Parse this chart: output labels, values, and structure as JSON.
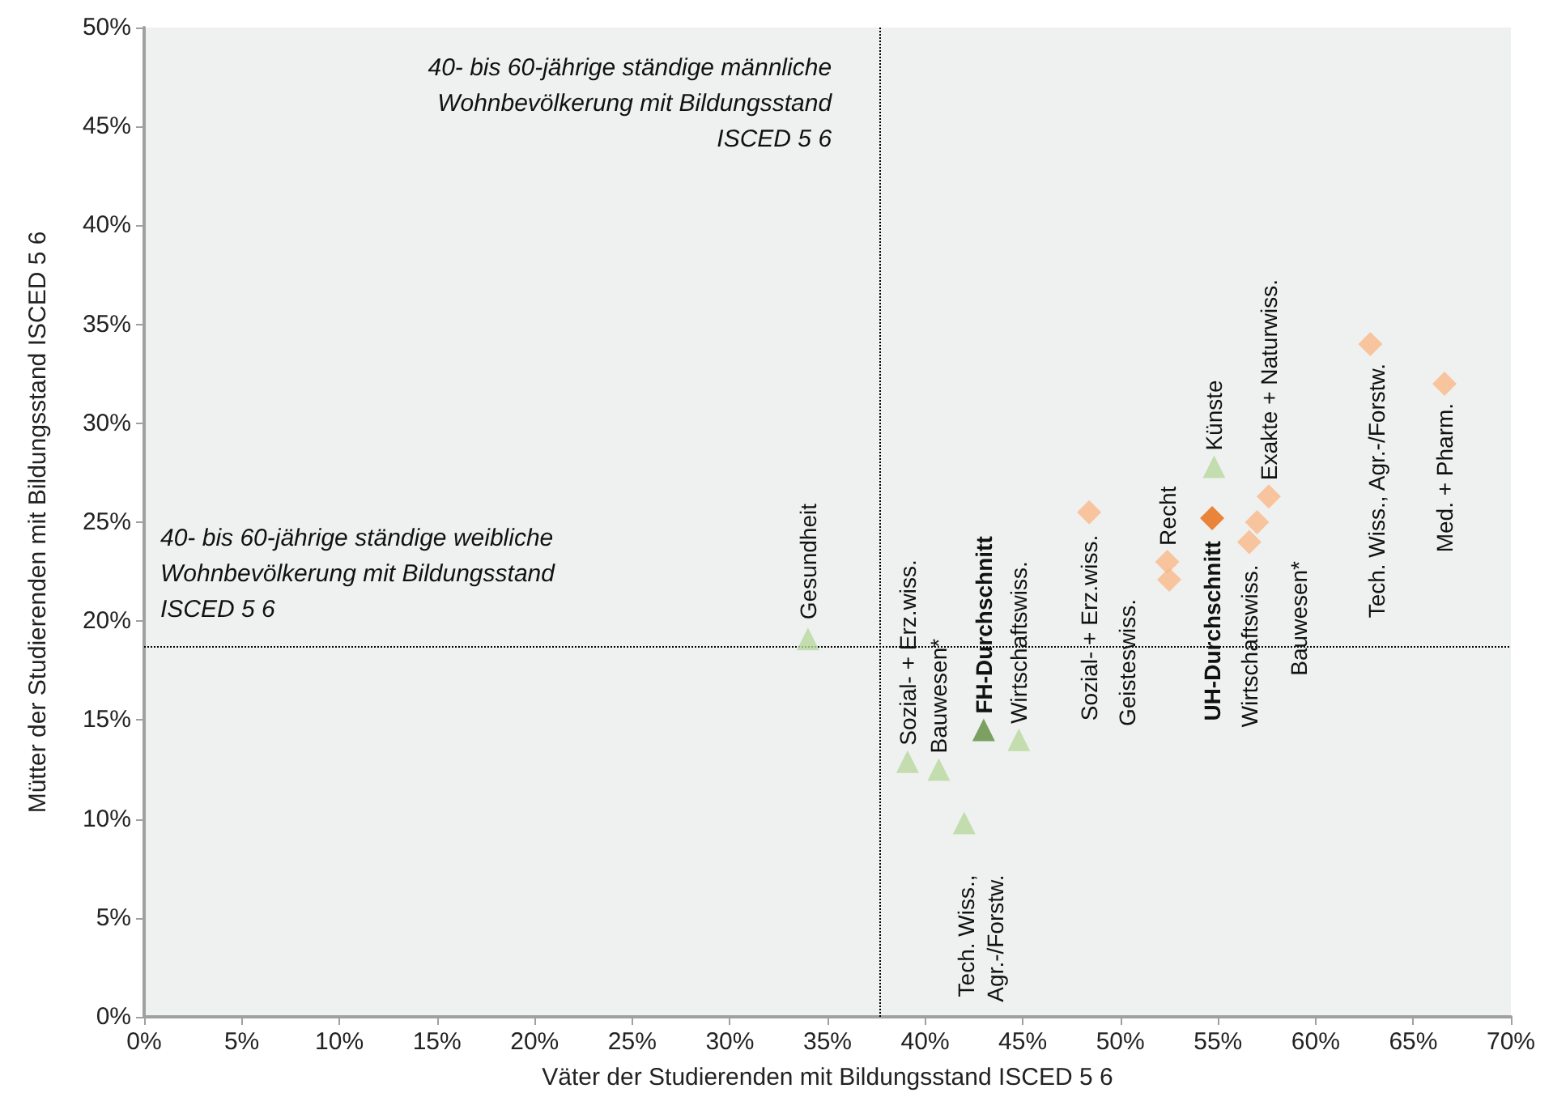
{
  "chart_data": {
    "type": "scatter",
    "xlabel": "Väter der Studierenden mit Bildungsstand ISCED 5 6",
    "ylabel": "Mütter der Studierenden mit Bildungsstand ISCED 5 6",
    "xlim": [
      0,
      70
    ],
    "ylim": [
      0,
      50
    ],
    "xticks": [
      {
        "value": 0,
        "label": "0%"
      },
      {
        "value": 5,
        "label": "5%"
      },
      {
        "value": 10,
        "label": "10%"
      },
      {
        "value": 15,
        "label": "15%"
      },
      {
        "value": 20,
        "label": "20%"
      },
      {
        "value": 25,
        "label": "25%"
      },
      {
        "value": 30,
        "label": "30%"
      },
      {
        "value": 35,
        "label": "35%"
      },
      {
        "value": 40,
        "label": "40%"
      },
      {
        "value": 45,
        "label": "45%"
      },
      {
        "value": 50,
        "label": "50%"
      },
      {
        "value": 55,
        "label": "55%"
      },
      {
        "value": 60,
        "label": "60%"
      },
      {
        "value": 65,
        "label": "65%"
      },
      {
        "value": 70,
        "label": "70%"
      }
    ],
    "yticks": [
      {
        "value": 0,
        "label": "0%"
      },
      {
        "value": 5,
        "label": "5%"
      },
      {
        "value": 10,
        "label": "10%"
      },
      {
        "value": 15,
        "label": "15%"
      },
      {
        "value": 20,
        "label": "20%"
      },
      {
        "value": 25,
        "label": "25%"
      },
      {
        "value": 30,
        "label": "30%"
      },
      {
        "value": 35,
        "label": "35%"
      },
      {
        "value": 40,
        "label": "40%"
      },
      {
        "value": 45,
        "label": "45%"
      },
      {
        "value": 50,
        "label": "50%"
      }
    ],
    "grid": false,
    "series": [
      {
        "color": "#b8d89f",
        "marker": "triangle",
        "x": [
          34.0,
          39.1,
          40.7,
          42.0,
          44.8,
          54.8
        ],
        "values": [
          19.1,
          12.9,
          12.5,
          9.8,
          14.0,
          27.8
        ]
      },
      {
        "color": "#5e8c3f",
        "marker": "triangle",
        "x": [
          43.0
        ],
        "values": [
          14.5
        ]
      },
      {
        "color": "#f9b98a",
        "marker": "diamond",
        "x": [
          48.4,
          52.5,
          52.4,
          56.6,
          57.0,
          57.6,
          62.8,
          66.6
        ],
        "values": [
          25.5,
          22.1,
          23.0,
          24.0,
          25.0,
          26.3,
          34.0,
          32.0
        ]
      },
      {
        "color": "#e8690c",
        "marker": "diamond",
        "x": [
          54.7
        ],
        "values": [
          25.2
        ]
      }
    ],
    "ref_lines": [
      {
        "axis": "x",
        "value": 37.7,
        "label": "40- bis 60-jährige ständige männliche\nWohnbevölkerung mit Bildungsstand\nISCED 5 6",
        "line_style": "dotted",
        "color": "#000000"
      },
      {
        "axis": "y",
        "value": 18.7,
        "label": "40- bis 60-jährige ständige weibliche\nWohnbevölkerung mit Bildungsstand\nISCED 5 6",
        "line_style": "dotted",
        "color": "#000000"
      }
    ],
    "annotations": [
      {
        "text": "Gesundheit",
        "x": 34.0,
        "y": 19.1
      },
      {
        "text": "Sozial- + Erz.wiss.",
        "x": 39.1,
        "y": 12.9
      },
      {
        "text": "Bauwesen*",
        "x": 40.7,
        "y": 12.5
      },
      {
        "text": "Tech. Wiss.,\nAgr.-/Forstw.",
        "x": 42.0,
        "y": 9.8
      },
      {
        "text": "FH-Durchschnitt",
        "x": 43.0,
        "y": 14.5
      },
      {
        "text": "Wirtschaftswiss.",
        "x": 44.8,
        "y": 14.0
      },
      {
        "text": "Künste",
        "x": 54.8,
        "y": 27.8
      },
      {
        "text": "Sozial- + Erz.wiss.",
        "x": 48.4,
        "y": 25.5
      },
      {
        "text": "Geisteswiss.",
        "x": 52.5,
        "y": 22.1
      },
      {
        "text": "Recht",
        "x": 52.4,
        "y": 23.0
      },
      {
        "text": "UH-Durchschnitt",
        "x": 54.7,
        "y": 25.2
      },
      {
        "text": "Wirtschaftswiss.",
        "x": 56.6,
        "y": 24.0
      },
      {
        "text": "Bauwesen*",
        "x": 57.0,
        "y": 25.0
      },
      {
        "text": "Exakte + Naturwiss.",
        "x": 57.6,
        "y": 26.3
      },
      {
        "text": "Tech. Wiss., Agr.-/Forstw.",
        "x": 62.8,
        "y": 34.0
      },
      {
        "text": "Med. + Pharm.",
        "x": 66.6,
        "y": 32.0
      }
    ]
  }
}
